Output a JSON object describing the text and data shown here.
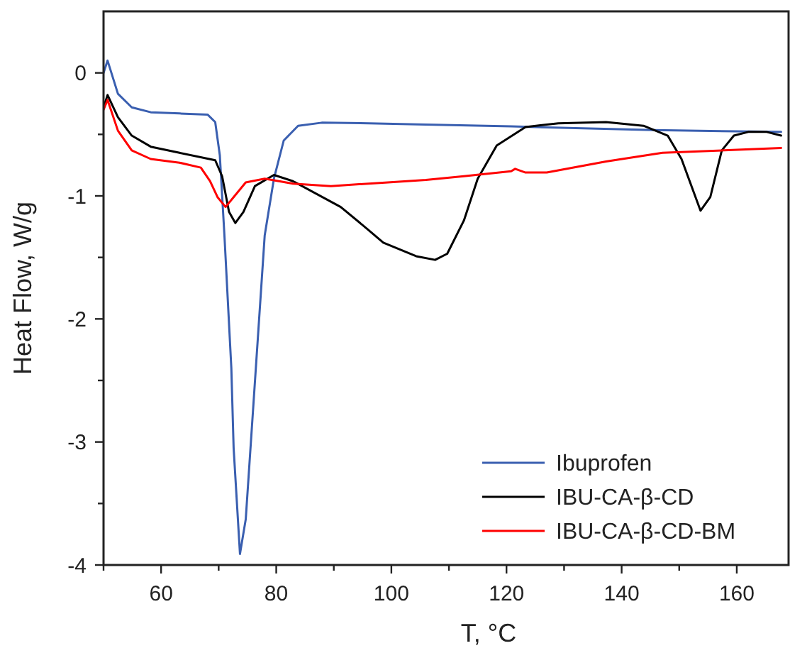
{
  "chart_data": {
    "type": "line",
    "xlabel": "T, °C",
    "ylabel": "Heat Flow, W/g",
    "xlim": [
      50,
      169
    ],
    "ylim": [
      -4,
      0.5
    ],
    "xticks": [
      {
        "value": 50,
        "label": null
      },
      60,
      {
        "value": 70,
        "label": null
      },
      80,
      {
        "value": 90,
        "label": null
      },
      100,
      {
        "value": 110,
        "label": null
      },
      120,
      {
        "value": 130,
        "label": null
      },
      140,
      {
        "value": 150,
        "label": null
      },
      160
    ],
    "yticks": [
      -4,
      {
        "value": -3.5,
        "label": null
      },
      -3,
      {
        "value": -2.5,
        "label": null
      },
      -2,
      {
        "value": -1.5,
        "label": null
      },
      -1,
      {
        "value": -0.5,
        "label": null
      },
      0
    ],
    "grid": false,
    "legend": "bottom right",
    "marker": "none",
    "line_style": "solid",
    "series": [
      {
        "name": "Ibuprofen",
        "color": "#3a5fb0",
        "x": [
          50,
          50.7,
          52.5,
          54.9,
          58.2,
          63.2,
          68.1,
          69.4,
          70.2,
          71,
          72.2,
          72.6,
          73.7,
          74.7,
          76.8,
          78,
          79.6,
          81.3,
          83.8,
          87.9,
          96.1,
          106,
          120.8,
          145.5,
          167.7
        ],
        "values": [
          0.0,
          0.1,
          -0.17,
          -0.28,
          -0.32,
          -0.33,
          -0.34,
          -0.4,
          -0.67,
          -1.32,
          -2.4,
          -3.05,
          -3.91,
          -3.63,
          -2.16,
          -1.32,
          -0.86,
          -0.55,
          -0.43,
          -0.405,
          -0.41,
          -0.42,
          -0.435,
          -0.465,
          -0.48
        ]
      },
      {
        "name": "IBU-CA-β-CD",
        "color": "#000000",
        "x": [
          50,
          50.7,
          52.5,
          54.9,
          58.2,
          63.2,
          69.4,
          70.6,
          71.8,
          72.9,
          74.3,
          76.3,
          79.6,
          82.9,
          91.2,
          96.1,
          98.6,
          104.3,
          107.6,
          109.7,
          112.6,
          115,
          118.3,
          123.3,
          129,
          137.3,
          143.8,
          148,
          150.4,
          153.7,
          155.4,
          157.4,
          159.5,
          162,
          165.2,
          167.7
        ],
        "values": [
          -0.28,
          -0.18,
          -0.36,
          -0.51,
          -0.6,
          -0.65,
          -0.71,
          -0.84,
          -1.13,
          -1.22,
          -1.13,
          -0.92,
          -0.83,
          -0.88,
          -1.09,
          -1.28,
          -1.38,
          -1.49,
          -1.52,
          -1.47,
          -1.2,
          -0.86,
          -0.59,
          -0.44,
          -0.41,
          -0.4,
          -0.43,
          -0.51,
          -0.7,
          -1.12,
          -1.01,
          -0.63,
          -0.51,
          -0.48,
          -0.48,
          -0.51
        ]
      },
      {
        "name": "IBU-CA-β-CD-BM",
        "color": "#ff0000",
        "x": [
          50,
          50.7,
          52.5,
          54.9,
          58.2,
          63.2,
          66.9,
          68.5,
          69.8,
          71.2,
          72.6,
          74.7,
          78,
          82.9,
          89.5,
          99.4,
          106,
          112.6,
          120.8,
          121.5,
          123.3,
          127,
          137.3,
          147.1,
          157.8,
          167.7
        ],
        "values": [
          -0.3,
          -0.22,
          -0.47,
          -0.63,
          -0.7,
          -0.73,
          -0.77,
          -0.88,
          -1.01,
          -1.09,
          -1.01,
          -0.89,
          -0.86,
          -0.9,
          -0.92,
          -0.89,
          -0.87,
          -0.84,
          -0.8,
          -0.78,
          -0.81,
          -0.81,
          -0.72,
          -0.65,
          -0.63,
          -0.61
        ]
      }
    ]
  }
}
